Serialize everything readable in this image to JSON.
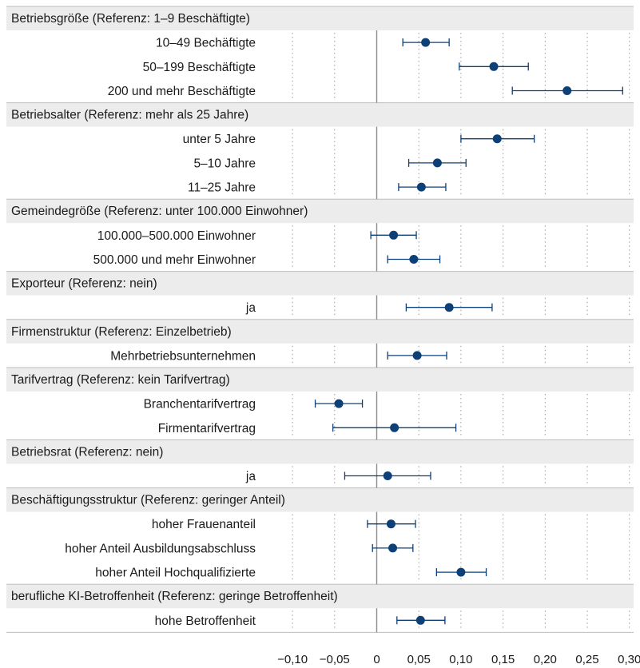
{
  "chart_data": {
    "type": "forest",
    "xlim": [
      -0.12,
      0.305
    ],
    "x_ticks": [
      -0.1,
      -0.05,
      0,
      0.05,
      0.1,
      0.15,
      0.2,
      0.25,
      0.3
    ],
    "x_tick_labels": [
      "−0,10",
      "−0,05",
      "0",
      "0,05",
      "0,10",
      "0,15",
      "0,20",
      "0,25",
      "0,30"
    ],
    "grid": "dotted-vertical",
    "reference_line": 0,
    "colors": {
      "point": "#0d4077",
      "header_bg": "#ececec",
      "grid": "#9a9a9a",
      "zero": "#8c8c8c"
    },
    "groups": [
      {
        "title": "Betriebsgröße (Referenz: 1–9 Beschäftigte)",
        "rows": [
          {
            "label": "10–49 Bechäftigte",
            "est": 0.058,
            "lo": 0.031,
            "hi": 0.086
          },
          {
            "label": "50–199 Beschäftigte",
            "est": 0.139,
            "lo": 0.098,
            "hi": 0.18
          },
          {
            "label": "200 und mehr Beschäftigte",
            "est": 0.226,
            "lo": 0.161,
            "hi": 0.292
          }
        ]
      },
      {
        "title": "Betriebsalter (Referenz: mehr als 25 Jahre)",
        "rows": [
          {
            "label": "unter 5 Jahre",
            "est": 0.143,
            "lo": 0.1,
            "hi": 0.187
          },
          {
            "label": "5–10 Jahre",
            "est": 0.072,
            "lo": 0.038,
            "hi": 0.106
          },
          {
            "label": "11–25 Jahre",
            "est": 0.053,
            "lo": 0.026,
            "hi": 0.082
          }
        ]
      },
      {
        "title": "Gemeindegröße (Referenz: unter 100.000 Einwohner)",
        "rows": [
          {
            "label": "100.000–500.000 Einwohner",
            "est": 0.02,
            "lo": -0.007,
            "hi": 0.047
          },
          {
            "label": "500.000 und mehr Einwohner",
            "est": 0.044,
            "lo": 0.013,
            "hi": 0.075
          }
        ]
      },
      {
        "title": "Exporteur (Referenz: nein)",
        "rows": [
          {
            "label": "ja",
            "est": 0.086,
            "lo": 0.035,
            "hi": 0.137
          }
        ]
      },
      {
        "title": "Firmenstruktur (Referenz: Einzelbetrieb)",
        "rows": [
          {
            "label": "Mehrbetriebsunternehmen",
            "est": 0.048,
            "lo": 0.013,
            "hi": 0.083
          }
        ]
      },
      {
        "title": "Tarifvertrag (Referenz: kein Tarifvertrag)",
        "rows": [
          {
            "label": "Branchentarifvertrag",
            "est": -0.045,
            "lo": -0.073,
            "hi": -0.017
          },
          {
            "label": "Firmentarifvertrag",
            "est": 0.021,
            "lo": -0.052,
            "hi": 0.094
          }
        ]
      },
      {
        "title": "Betriebsrat (Referenz: nein)",
        "rows": [
          {
            "label": "ja",
            "est": 0.013,
            "lo": -0.038,
            "hi": 0.064
          }
        ]
      },
      {
        "title": "Beschäftigungsstruktur (Referenz: geringer Anteil)",
        "rows": [
          {
            "label": "hoher Frauenanteil",
            "est": 0.017,
            "lo": -0.011,
            "hi": 0.046
          },
          {
            "label": "hoher Anteil Ausbildungsabschluss",
            "est": 0.019,
            "lo": -0.005,
            "hi": 0.043
          },
          {
            "label": "hoher Anteil Hochqualifizierte",
            "est": 0.1,
            "lo": 0.071,
            "hi": 0.13
          }
        ]
      },
      {
        "title": "berufliche KI-Betroffenheit (Referenz: geringe Betroffenheit)",
        "rows": [
          {
            "label": "hohe Betroffenheit",
            "est": 0.052,
            "lo": 0.024,
            "hi": 0.081
          }
        ]
      }
    ]
  }
}
